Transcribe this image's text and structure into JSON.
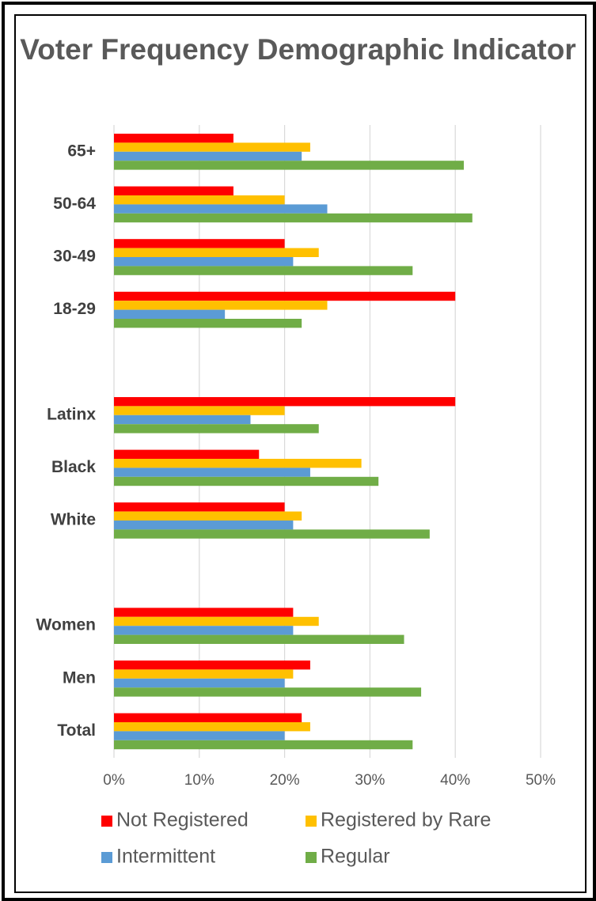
{
  "chart_data": {
    "type": "bar",
    "orientation": "horizontal",
    "title": "Voter Frequency Demographic Indicator",
    "xlabel": "",
    "ylabel": "",
    "xlim": [
      0,
      50
    ],
    "x_ticks": [
      "0%",
      "10%",
      "20%",
      "30%",
      "40%",
      "50%"
    ],
    "categories": [
      "65+",
      "50-64",
      "30-49",
      "18-29",
      "",
      "Latinx",
      "Black",
      "White",
      "",
      "Women",
      "Men",
      "Total"
    ],
    "series": [
      {
        "name": "Not Registered",
        "color": "#ff0000",
        "values": [
          14,
          14,
          20,
          40,
          null,
          40,
          17,
          20,
          null,
          21,
          23,
          22
        ]
      },
      {
        "name": "Registered by Rare",
        "color": "#ffc000",
        "values": [
          23,
          20,
          24,
          25,
          null,
          20,
          29,
          22,
          null,
          24,
          21,
          23
        ]
      },
      {
        "name": "Intermittent",
        "color": "#5b9bd5",
        "values": [
          22,
          25,
          21,
          13,
          null,
          16,
          23,
          21,
          null,
          21,
          20,
          20
        ]
      },
      {
        "name": "Regular",
        "color": "#70ad47",
        "values": [
          41,
          42,
          35,
          22,
          null,
          24,
          31,
          37,
          null,
          34,
          36,
          35
        ]
      }
    ],
    "grid": true,
    "legend_position": "bottom"
  }
}
